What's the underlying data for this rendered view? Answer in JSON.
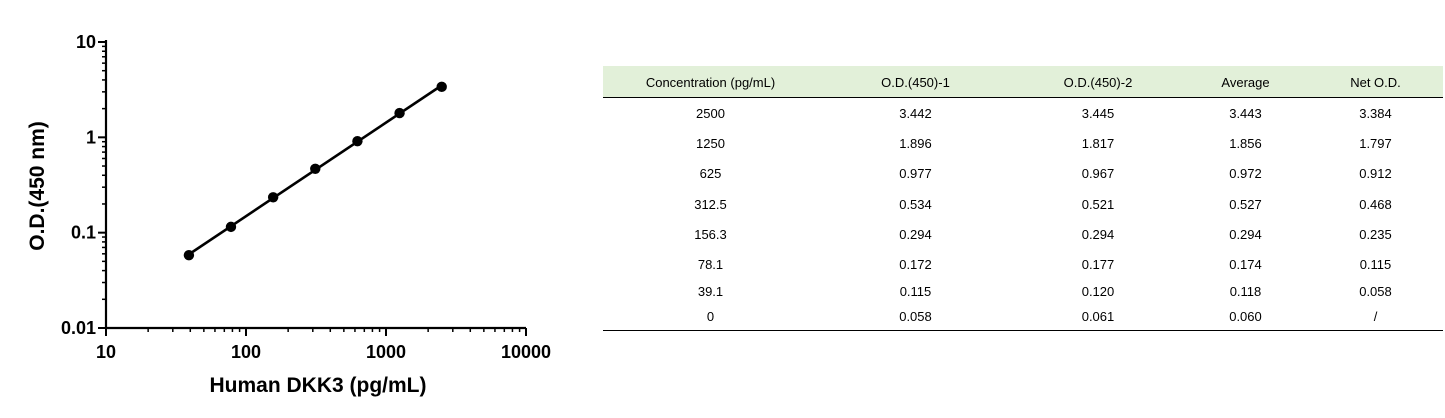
{
  "chart_data": {
    "type": "scatter",
    "xlabel": "Human DKK3 (pg/mL)",
    "ylabel": "O.D.(450 nm)",
    "xscale": "log",
    "yscale": "log",
    "xlim": [
      10,
      10000
    ],
    "ylim": [
      0.01,
      10
    ],
    "x_ticks": [
      "10",
      "100",
      "1000",
      "10000"
    ],
    "y_ticks": [
      "0.01",
      "0.1",
      "1",
      "10"
    ],
    "x": [
      39.1,
      78.1,
      156.3,
      312.5,
      625,
      1250,
      2500
    ],
    "y": [
      0.058,
      0.115,
      0.235,
      0.468,
      0.912,
      1.797,
      3.384
    ],
    "fit_line": true
  },
  "table": {
    "headers": [
      "Concentration (pg/mL)",
      "O.D.(450)-1",
      "O.D.(450)-2",
      "Average",
      "Net O.D."
    ],
    "rows": [
      [
        "2500",
        "3.442",
        "3.445",
        "3.443",
        "3.384"
      ],
      [
        "1250",
        "1.896",
        "1.817",
        "1.856",
        "1.797"
      ],
      [
        "625",
        "0.977",
        "0.967",
        "0.972",
        "0.912"
      ],
      [
        "312.5",
        "0.534",
        "0.521",
        "0.527",
        "0.468"
      ],
      [
        "156.3",
        "0.294",
        "0.294",
        "0.294",
        "0.235"
      ],
      [
        "78.1",
        "0.172",
        "0.177",
        "0.174",
        "0.115"
      ],
      [
        "39.1",
        "0.115",
        "0.120",
        "0.118",
        "0.058"
      ],
      [
        "0",
        "0.058",
        "0.061",
        "0.060",
        "/"
      ]
    ],
    "header_bg": "#e2f0d9"
  }
}
